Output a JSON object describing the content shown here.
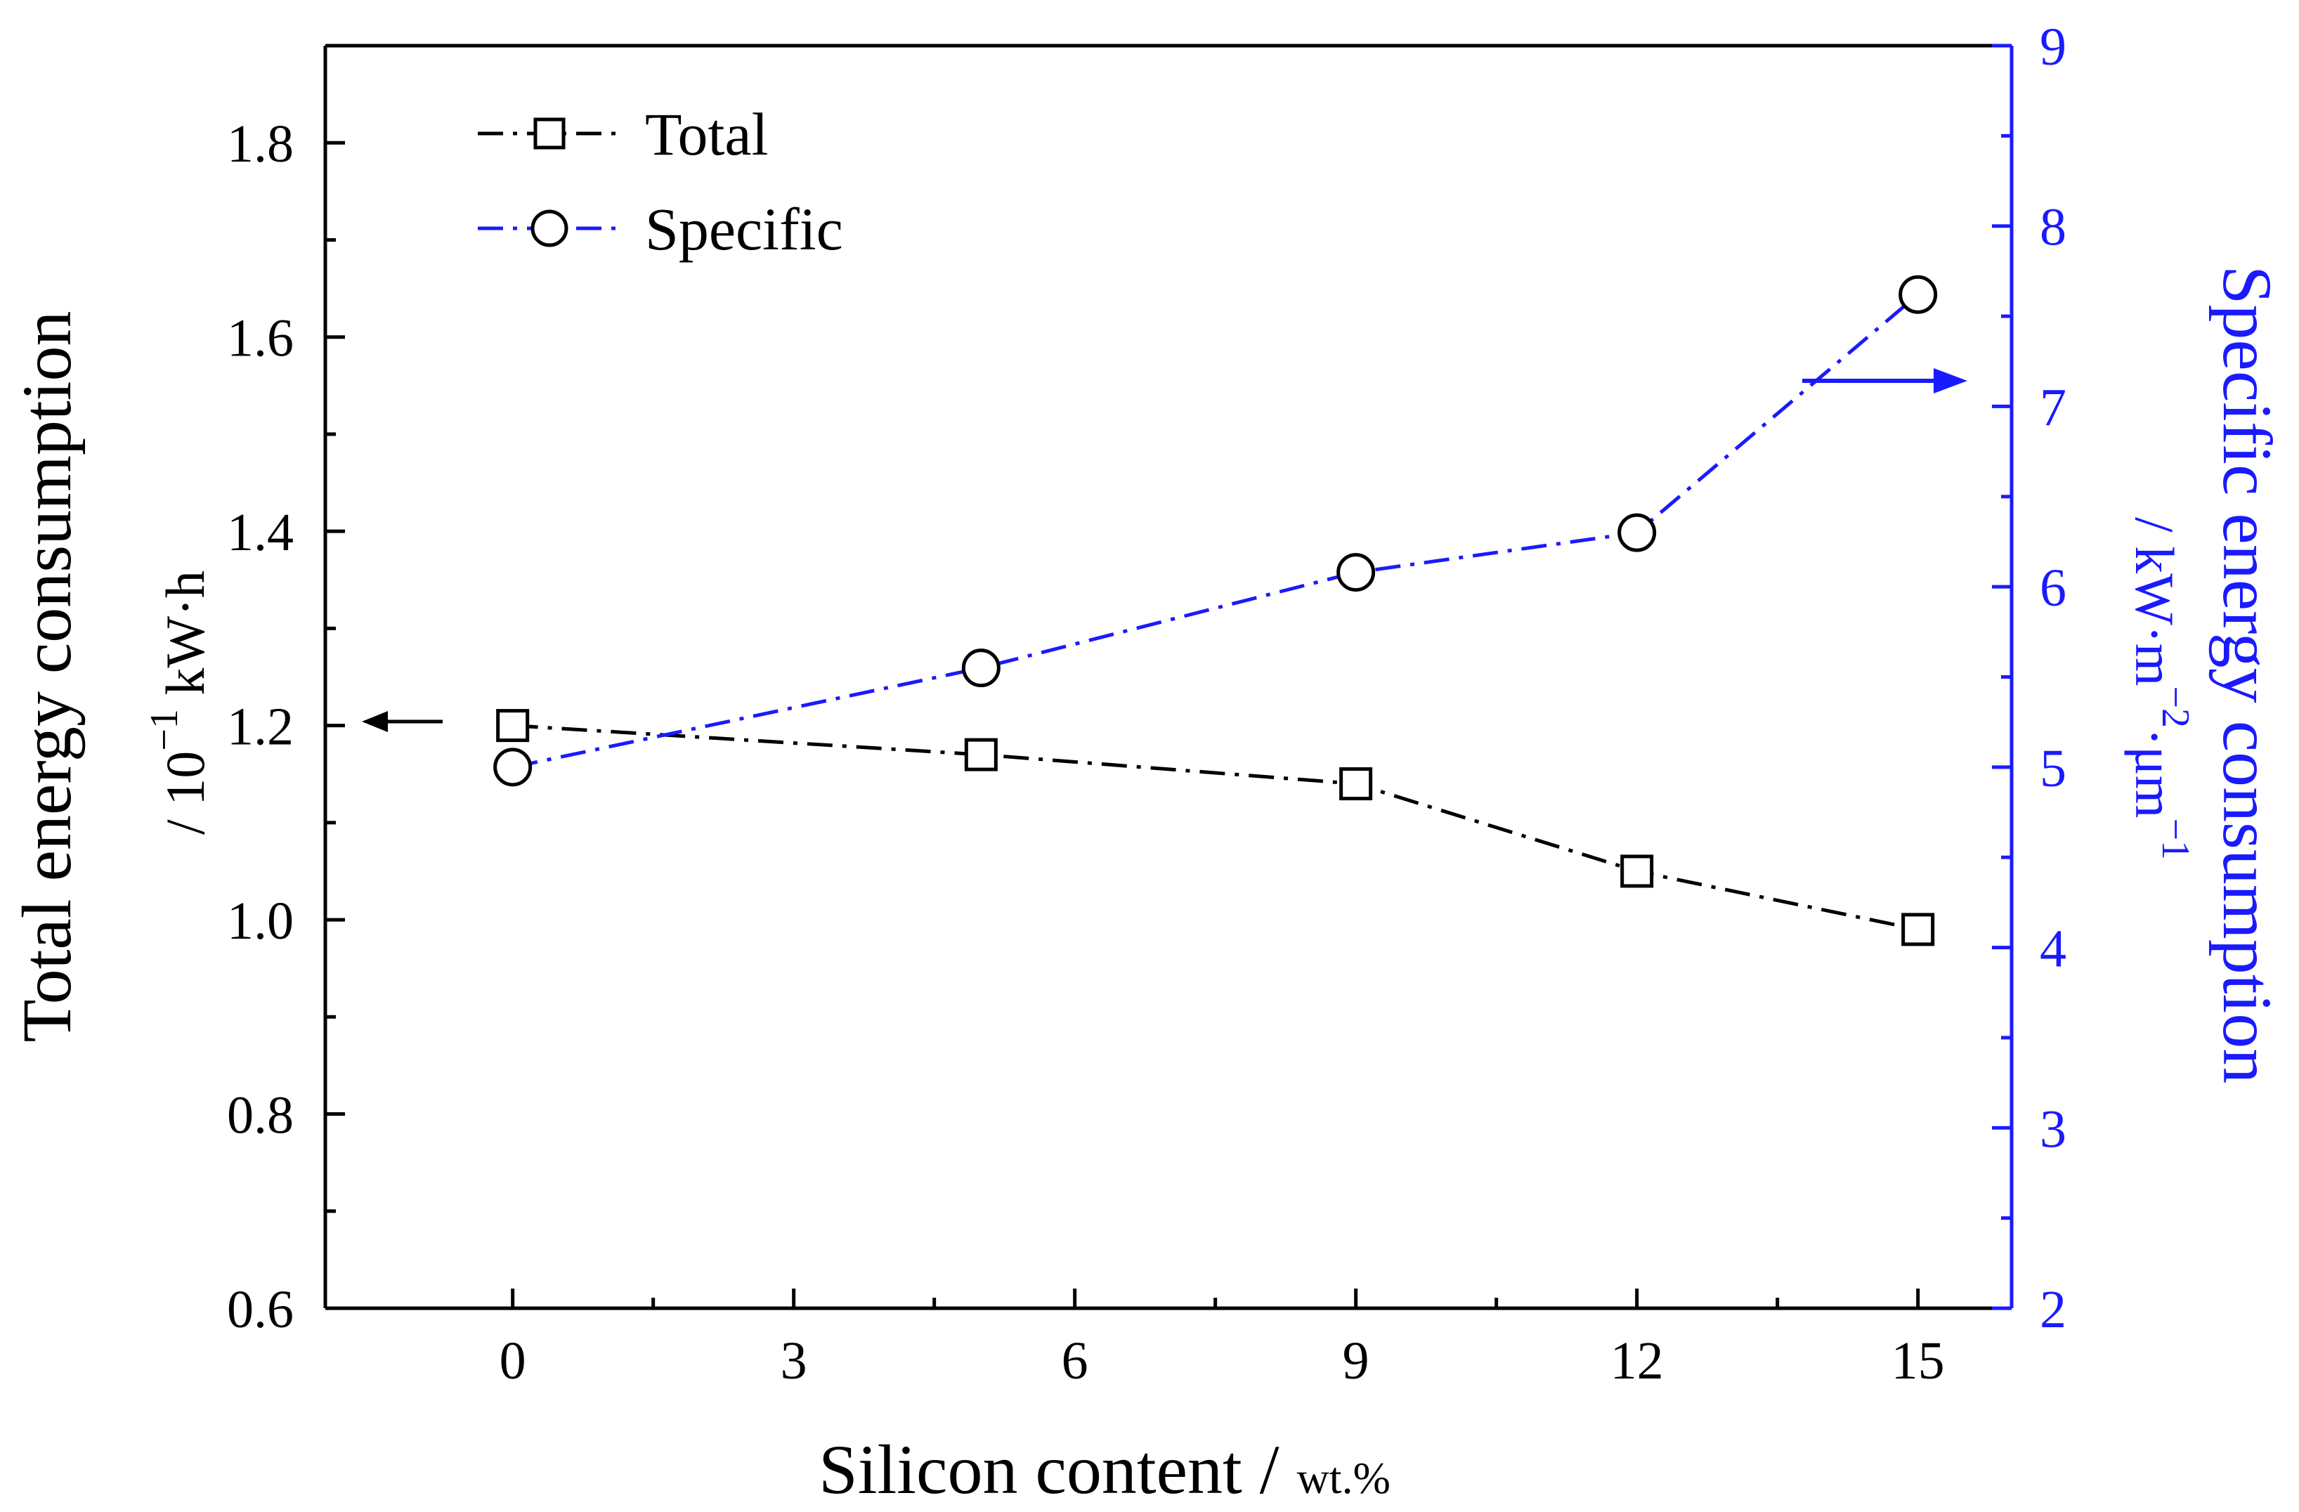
{
  "chart_data": {
    "type": "line",
    "x": [
      0,
      5,
      9,
      12,
      15
    ],
    "xlabel_main": "Silicon content",
    "xlabel_unit": "wt.%",
    "xlim": [
      -2,
      16
    ],
    "xticks": [
      0,
      3,
      6,
      9,
      12,
      15
    ],
    "left_axis": {
      "label_main": "Total energy consumption",
      "label_unit_prefix": "/ 10",
      "label_unit_exp": "−1",
      "label_unit_suffix": "kW·h",
      "ylim": [
        0.6,
        1.9
      ],
      "ticks": [
        "0.6",
        "0.8",
        "1.0",
        "1.2",
        "1.4",
        "1.6",
        "1.8"
      ],
      "color": "#000000"
    },
    "right_axis": {
      "label_main": "Specific energy consumption",
      "label_unit_prefix": "/ kW·m",
      "label_unit_exp1": "−2",
      "label_unit_mid": "·μm",
      "label_unit_exp2": "−1",
      "ylim": [
        2,
        9
      ],
      "ticks": [
        "2",
        "3",
        "4",
        "5",
        "6",
        "7",
        "8",
        "9"
      ],
      "color": "#1a1aff"
    },
    "series": [
      {
        "name": "Total",
        "axis": "left",
        "marker": "square",
        "color": "#000000",
        "values": [
          1.2,
          1.17,
          1.14,
          1.05,
          0.99
        ]
      },
      {
        "name": "Specific",
        "axis": "right",
        "marker": "circle",
        "color": "#1a1aff",
        "values": [
          5.0,
          5.55,
          6.08,
          6.3,
          7.62
        ]
      }
    ],
    "legend_position": "top-left",
    "annotations": [
      "left arrow points to left axis (Total)",
      "right arrow points to right axis (Specific)"
    ]
  }
}
